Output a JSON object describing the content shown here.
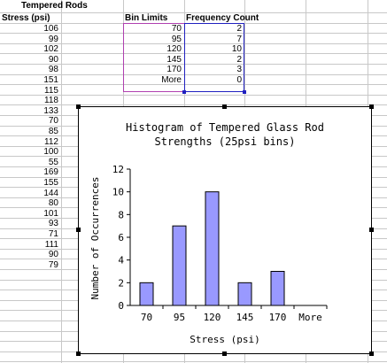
{
  "sheet": {
    "title": "Tempered Rods",
    "col_a_header": "Stress (psi)",
    "col_c_header": "Bin Limits",
    "col_d_header": "Frequency Count",
    "stress_values": [
      "106",
      "99",
      "102",
      "90",
      "98",
      "151",
      "115",
      "118",
      "133",
      "70",
      "85",
      "112",
      "100",
      "55",
      "169",
      "155",
      "144",
      "80",
      "101",
      "93",
      "71",
      "111",
      "90",
      "79"
    ],
    "bin_limits": [
      "70",
      "95",
      "120",
      "145",
      "170",
      "More"
    ],
    "frequency_counts": [
      "2",
      "7",
      "10",
      "2",
      "3",
      "0"
    ],
    "bin_border_color": "#b040b0",
    "freq_border_color": "#2020c0"
  },
  "chart_data": {
    "type": "bar",
    "title_line1": "Histogram of Tempered Glass Rod",
    "title_line2": "Strengths (25psi bins)",
    "xlabel": "Stress (psi)",
    "ylabel": "Number of Occurrences",
    "categories": [
      "70",
      "95",
      "120",
      "145",
      "170",
      "More"
    ],
    "values": [
      2,
      7,
      10,
      2,
      3,
      0
    ],
    "ylim": [
      0,
      12
    ],
    "y_ticks": [
      "0",
      "2",
      "4",
      "6",
      "8",
      "10",
      "12"
    ],
    "bar_color": "#9999ff",
    "grid": false
  }
}
